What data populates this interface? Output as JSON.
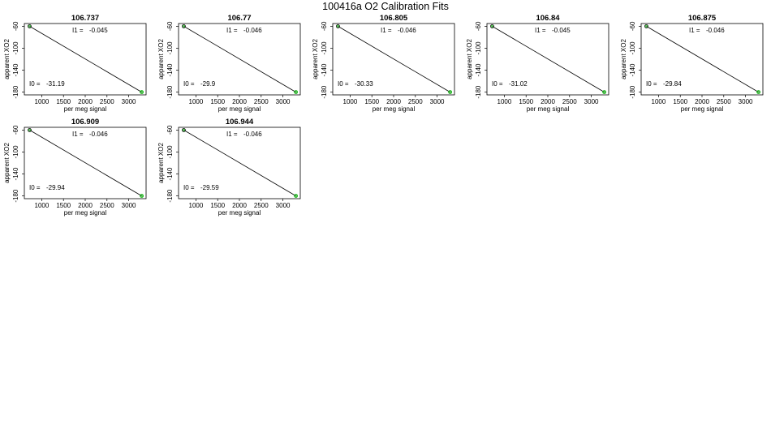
{
  "figure_title": "100416a   O2 Calibration Fits",
  "colors": {
    "line": "#000000",
    "frame": "#000000",
    "point_low": "#000000",
    "point_high": "#00b000"
  },
  "chart_data": [
    {
      "type": "scatter",
      "title": "106.737",
      "xlabel": "per meg signal",
      "ylabel": "apparent XO2",
      "xticks": [
        1000,
        1500,
        2000,
        2500,
        3000
      ],
      "yticks": [
        -60,
        -100,
        -140,
        -180
      ],
      "xlim": [
        600,
        3400
      ],
      "ylim": [
        -185,
        -55
      ],
      "coef_i1_label": "I1 =",
      "coef_i1": "-0.045",
      "coef_i0_label": "I0 =",
      "coef_i0": "-31.19",
      "points": [
        [
          720,
          -60
        ],
        [
          3300,
          -180
        ]
      ]
    },
    {
      "type": "scatter",
      "title": "106.77",
      "xlabel": "per meg signal",
      "ylabel": "apparent XO2",
      "xticks": [
        1000,
        1500,
        2000,
        2500,
        3000
      ],
      "yticks": [
        -60,
        -100,
        -140,
        -180
      ],
      "xlim": [
        600,
        3400
      ],
      "ylim": [
        -185,
        -55
      ],
      "coef_i1_label": "I1 =",
      "coef_i1": "-0.046",
      "coef_i0_label": "I0 =",
      "coef_i0": "-29.9",
      "points": [
        [
          720,
          -60
        ],
        [
          3300,
          -180
        ]
      ]
    },
    {
      "type": "scatter",
      "title": "106.805",
      "xlabel": "per meg signal",
      "ylabel": "apparent XO2",
      "xticks": [
        1000,
        1500,
        2000,
        2500,
        3000
      ],
      "yticks": [
        -60,
        -100,
        -140,
        -180
      ],
      "xlim": [
        600,
        3400
      ],
      "ylim": [
        -185,
        -55
      ],
      "coef_i1_label": "I1 =",
      "coef_i1": "-0.046",
      "coef_i0_label": "I0 =",
      "coef_i0": "-30.33",
      "points": [
        [
          720,
          -60
        ],
        [
          3300,
          -180
        ]
      ]
    },
    {
      "type": "scatter",
      "title": "106.84",
      "xlabel": "per meg signal",
      "ylabel": "apparent XO2",
      "xticks": [
        1000,
        1500,
        2000,
        2500,
        3000
      ],
      "yticks": [
        -60,
        -100,
        -140,
        -180
      ],
      "xlim": [
        600,
        3400
      ],
      "ylim": [
        -185,
        -55
      ],
      "coef_i1_label": "I1 =",
      "coef_i1": "-0.045",
      "coef_i0_label": "I0 =",
      "coef_i0": "-31.02",
      "points": [
        [
          720,
          -60
        ],
        [
          3300,
          -180
        ]
      ]
    },
    {
      "type": "scatter",
      "title": "106.875",
      "xlabel": "per meg signal",
      "ylabel": "apparent XO2",
      "xticks": [
        1000,
        1500,
        2000,
        2500,
        3000
      ],
      "yticks": [
        -60,
        -100,
        -140,
        -180
      ],
      "xlim": [
        600,
        3400
      ],
      "ylim": [
        -185,
        -55
      ],
      "coef_i1_label": "I1 =",
      "coef_i1": "-0.046",
      "coef_i0_label": "I0 =",
      "coef_i0": "-29.84",
      "points": [
        [
          720,
          -60
        ],
        [
          3300,
          -180
        ]
      ]
    },
    {
      "type": "scatter",
      "title": "106.909",
      "xlabel": "per meg signal",
      "ylabel": "apparent XO2",
      "xticks": [
        1000,
        1500,
        2000,
        2500,
        3000
      ],
      "yticks": [
        -60,
        -100,
        -140,
        -180
      ],
      "xlim": [
        600,
        3400
      ],
      "ylim": [
        -185,
        -55
      ],
      "coef_i1_label": "I1 =",
      "coef_i1": "-0.046",
      "coef_i0_label": "I0 =",
      "coef_i0": "-29.94",
      "points": [
        [
          720,
          -60
        ],
        [
          3300,
          -180
        ]
      ]
    },
    {
      "type": "scatter",
      "title": "106.944",
      "xlabel": "per meg signal",
      "ylabel": "apparent XO2",
      "xticks": [
        1000,
        1500,
        2000,
        2500,
        3000
      ],
      "yticks": [
        -60,
        -100,
        -140,
        -180
      ],
      "xlim": [
        600,
        3400
      ],
      "ylim": [
        -185,
        -55
      ],
      "coef_i1_label": "I1 =",
      "coef_i1": "-0.046",
      "coef_i0_label": "I0 =",
      "coef_i0": "-29.59",
      "points": [
        [
          720,
          -60
        ],
        [
          3300,
          -180
        ]
      ]
    }
  ]
}
